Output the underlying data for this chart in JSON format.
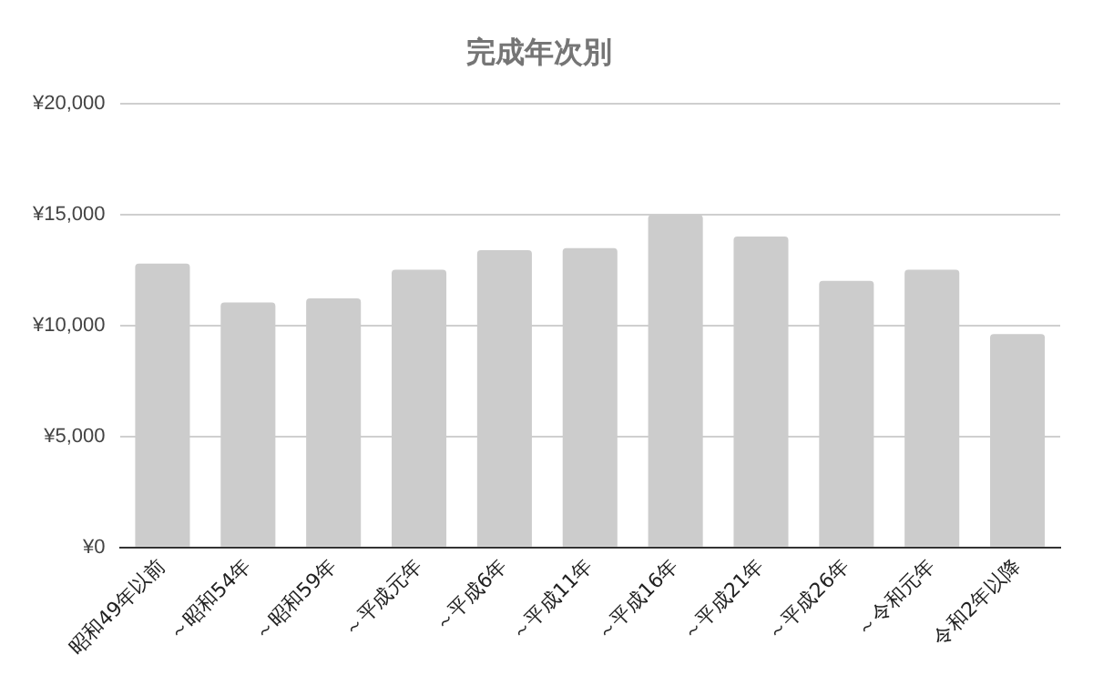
{
  "chart_data": {
    "type": "bar",
    "title": "完成年次別",
    "categories": [
      "昭和49年以前",
      "～昭和54年",
      "～昭和59年",
      "～平成元年",
      "～平成6年",
      "～平成11年",
      "～平成16年",
      "～平成21年",
      "～平成26年",
      "～令和元年",
      "令和2年以降"
    ],
    "values": [
      12800,
      11050,
      11230,
      12530,
      13410,
      13500,
      15000,
      14020,
      12020,
      12530,
      9620
    ],
    "color": "#cccccc",
    "ylim": [
      0,
      20000
    ],
    "yticks": [
      {
        "value": 0,
        "label": "¥0"
      },
      {
        "value": 5000,
        "label": "¥5,000"
      },
      {
        "value": 10000,
        "label": "¥10,000"
      },
      {
        "value": 15000,
        "label": "¥15,000"
      },
      {
        "value": 20000,
        "label": "¥20,000"
      }
    ],
    "grid": "y",
    "legend": false
  }
}
